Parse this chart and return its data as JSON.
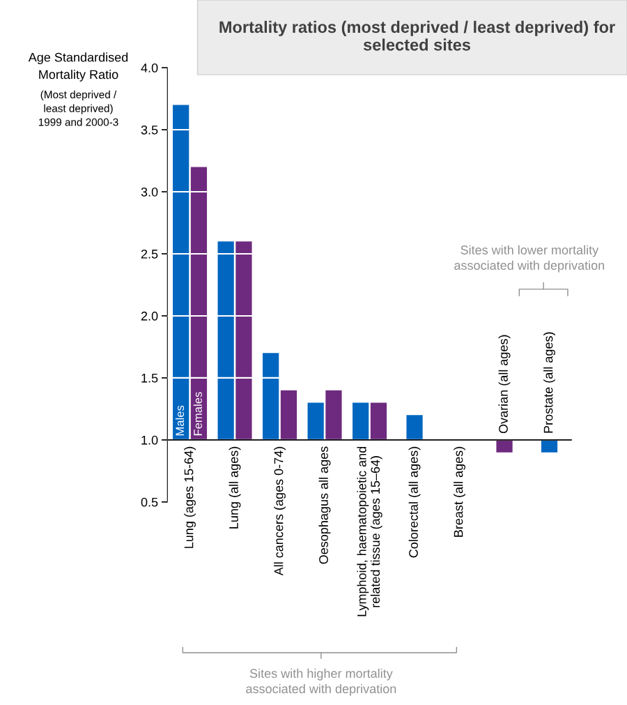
{
  "chart_data": {
    "type": "bar",
    "title": "Mortality ratios (most deprived / least deprived) for selected sites",
    "ylabel": "Age Standardised\nMortality Ratio",
    "categories": [
      "Lung (ages 15-64)",
      "Lung (all ages)",
      "All cancers (ages 0-74)",
      "Oesophagus all ages",
      "Lymphoid, haematopoietic and\nrelated tissue (ages 15–64)",
      "Colorectal (all ages)",
      "Breast (all ages)",
      "Ovarian (all ages)",
      "Prostate (all ages)"
    ],
    "series": [
      {
        "name": "Males",
        "color": "#0066c0",
        "base": [
          1,
          1,
          1,
          1,
          1,
          1,
          null,
          null,
          1
        ],
        "values": [
          2.7,
          1.6,
          0.7,
          0.3,
          0.3,
          0.2,
          null,
          null,
          -0.1
        ]
      },
      {
        "name": "Females",
        "color": "#6e2a7e",
        "base": [
          1,
          1,
          1,
          1,
          1,
          null,
          null,
          1,
          null
        ],
        "values": [
          2.2,
          1.6,
          0.4,
          0.4,
          0.3,
          null,
          null,
          -0.1,
          null
        ]
      }
    ],
    "ylim": [
      0.5,
      4.0
    ],
    "yticks": [
      {
        "value": 0.5,
        "label": "0.5"
      },
      {
        "value": 1,
        "label": "1.0"
      },
      {
        "value": 1.5,
        "label": "1.5"
      },
      {
        "value": 2,
        "label": "2.0"
      },
      {
        "value": 2.5,
        "label": "2.5"
      },
      {
        "value": 3,
        "label": "3.0"
      },
      {
        "value": 3.5,
        "label": "3.5"
      },
      {
        "value": 4,
        "label": "4.0"
      }
    ],
    "grid": "y",
    "ref_lines": [
      {
        "axis": "y",
        "value": 1,
        "color": "#000000"
      }
    ],
    "annotations": [
      "(Most deprived /\nleast deprived)\n1999 and 2000-3",
      "Sites with lower mortality\nassociated with deprivation",
      "Sites with higher mortality\nassociated with deprivation"
    ]
  }
}
